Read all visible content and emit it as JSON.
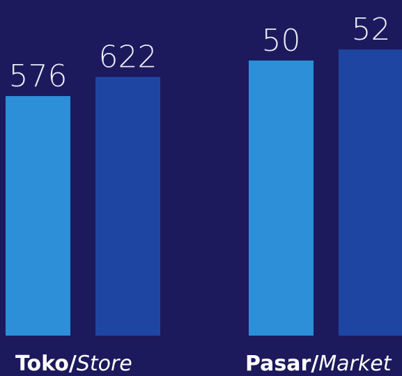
{
  "chart_data": [
    {
      "type": "bar",
      "label": [
        "Toko/",
        "Store"
      ],
      "values": [
        576,
        622
      ],
      "colors": [
        "#2c8fd8",
        "#1f45a3"
      ],
      "ylim": [
        0,
        807
      ]
    },
    {
      "type": "bar",
      "label": [
        "Pasar/",
        "Market"
      ],
      "values": [
        50,
        52
      ],
      "colors": [
        "#2c8fd8",
        "#1f45a3"
      ],
      "ylim": [
        0,
        61
      ]
    }
  ]
}
